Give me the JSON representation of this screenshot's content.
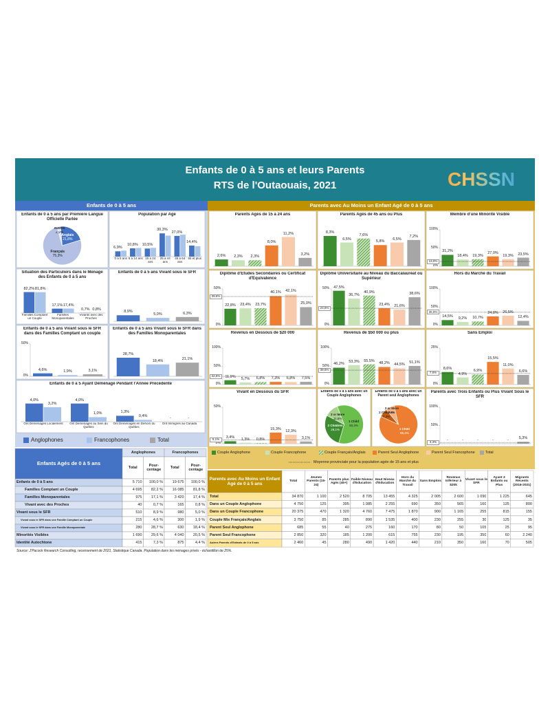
{
  "header": {
    "title": "Enfants de 0 à 5 ans et leurs Parents",
    "subtitle": "RTS de l'Outaouais, 2021",
    "logo": "CHSSN"
  },
  "children": {
    "title": "Enfants de 0 à 5 ans",
    "legend": [
      {
        "name": "Anglophones",
        "color": "#4472c4"
      },
      {
        "name": "Francophones",
        "color": "#a9c4eb"
      },
      {
        "name": "Total",
        "color": "#a6a6a6"
      }
    ],
    "charts": [
      {
        "type": "pie",
        "title": "Enfants de 0 à 5 ans par Première Langue Officielle Parlée",
        "categories": [
          "Anglais",
          "Français",
          "Autres"
        ],
        "values": [
          21.8,
          75.3,
          2.9
        ],
        "value_labels": [
          "21,8%",
          "75,3%",
          "2,9%"
        ],
        "colors": [
          "#4472c4",
          "#b4c0e4",
          "#dfe5f5"
        ]
      },
      {
        "type": "bar",
        "title": "Population par Age",
        "categories": [
          "0 à 5 ans",
          "6 à 14 ans",
          "15 à 24 ans",
          "25 à 44 ans",
          "45 à 64 ans",
          "65 et plus"
        ],
        "series": [
          {
            "values": [
              6.9,
              10.8,
              10.5,
              30.3,
              27.0,
              14.4
            ],
            "value_labels": [
              "6,9%",
              "10,8%",
              "10,5%",
              "30,3%",
              "27,0%",
              "14,4%"
            ]
          },
          {
            "values": [
              7.8,
              11.2,
              11.4,
              27.4,
              28.6,
              13.6
            ]
          }
        ],
        "ylim": [
          0,
          35
        ]
      },
      {
        "type": "bar",
        "title": "Situation des Particuliers dans le Ménage des Enfants de 0 à 5 ans",
        "categories": [
          "Familles Comptant un Couple",
          "Familles Monoparentales",
          "Vivants avec des Proches"
        ],
        "series": [
          {
            "values": [
              82.2,
              17.1,
              0.7
            ],
            "value_labels": [
              "82,2%",
              "17,1%",
              "0,7%"
            ]
          },
          {
            "values": [
              81.8,
              17.4,
              0.8
            ],
            "value_labels": [
              "81,8%",
              "17,4%",
              "0,8%"
            ]
          }
        ],
        "ylim": [
          0,
          100
        ]
      },
      {
        "type": "bar",
        "title": "Enfants de 0 à 5 ans Vivant sous le SFR",
        "values": [
          8.9,
          5.0,
          6.3
        ],
        "value_labels": [
          "8,9%",
          "5,0%",
          "6,3%"
        ],
        "ylim": [
          0,
          50
        ]
      },
      {
        "type": "bar",
        "title": "Enfants de 0 à 5 ans Vivant sous le SFR dans des Familles Comptant un couple",
        "values": [
          4.6,
          1.9,
          3.1
        ],
        "value_labels": [
          "4,6%",
          "1,9%",
          "3,1%"
        ],
        "ylim": [
          0,
          50
        ],
        "yticks": [
          {
            "value": 0,
            "label": "0%"
          },
          {
            "value": 50,
            "label": "50%"
          }
        ]
      },
      {
        "type": "bar",
        "title": "Enfants de 0 à 5 ans Vivant sous le SFR dans des Familles Monoparentales",
        "values": [
          28.7,
          18.4,
          21.1
        ],
        "value_labels": [
          "28,7%",
          "18,4%",
          "21,1%"
        ],
        "ylim": [
          0,
          50
        ]
      },
      {
        "type": "bar",
        "title": "Enfants de 0 à 5 Ayant Déménagé Pendant l'Année Précédente",
        "categories": [
          "Ont Déménagés Localement",
          "Ont Déménagés au Sein du Québec",
          "Ont Déménagés en Dehors du Québec",
          "Ont Immigrés au Canada"
        ],
        "series": [
          {
            "values": [
              4.0,
              4.0,
              1.3,
              null
            ],
            "value_labels": [
              "4,0%",
              "4,0%",
              "1,3%",
              "-"
            ]
          },
          {
            "values": [
              3.2,
              1.0,
              0.4,
              null
            ],
            "value_labels": [
              "3,2%",
              "1,0%",
              "0,4%",
              "-"
            ]
          }
        ],
        "ylim": [
          0,
          5
        ]
      }
    ]
  },
  "parents": {
    "title": "Parents avec Au Moins un Enfant Agé de 0 à 5 ans",
    "legend": [
      {
        "name": "Couple Anglophone",
        "color": "#3c8d2f"
      },
      {
        "name": "Couple Francophone",
        "color": "#c9e3b8"
      },
      {
        "name": "Couple Français/Anglais",
        "color": "#3c8d2f",
        "pattern": "hatch"
      },
      {
        "name": "Parent Seul Anglophone",
        "color": "#ed7d31"
      },
      {
        "name": "Parent Seul Francophone",
        "color": "#f8cbad"
      },
      {
        "name": "Total",
        "color": "#a6a6a6"
      }
    ],
    "average_note": "Moyenne provinciale pour la population agée de 15 ans et plus",
    "charts": [
      {
        "type": "bar",
        "title": "Parents Agés de 15 à 24 ans",
        "values": [
          2.6,
          2.3,
          2.3,
          8.0,
          11.2,
          3.2
        ],
        "value_labels": [
          "2,6%",
          "2,3%",
          "2,3%",
          "8,0%",
          "11,2%",
          "3,2%"
        ],
        "ylim": [
          0,
          14
        ]
      },
      {
        "type": "bar",
        "title": "Parents Agés de 45 ans ou Plus",
        "values": [
          8.3,
          6.5,
          7.6,
          5.8,
          6.5,
          7.2
        ],
        "value_labels": [
          "8,3%",
          "6,5%",
          "7,6%",
          "5,8%",
          "6,5%",
          "7,2%"
        ],
        "ylim": [
          0,
          10
        ]
      },
      {
        "type": "bar",
        "title": "Membre d'une Minorité Visible",
        "values": [
          31.2,
          18.4,
          19.3,
          27.0,
          19.3,
          23.5
        ],
        "value_labels": [
          "31,2%",
          "18,4%",
          "19,3%",
          "27,0%",
          "19,3%",
          "23,5%"
        ],
        "ylim": [
          0,
          100
        ],
        "yticks": [
          {
            "value": 0,
            "label": "0%"
          },
          {
            "value": 50,
            "label": "50%"
          },
          {
            "value": 100,
            "label": "100%"
          }
        ],
        "average": {
          "value": 13.0,
          "label": "13,0%"
        }
      },
      {
        "type": "bar",
        "title": "Diplôme d'Etudes Secondaires ou Certificat d'Equivalence",
        "values": [
          22.8,
          23.4,
          23.7,
          40.1,
          42.1,
          25.0
        ],
        "value_labels": [
          "22,8%",
          "23,4%",
          "23,7%",
          "40,1%",
          "42,1%",
          "25,0%"
        ],
        "ylim": [
          0,
          50
        ],
        "yticks": [
          {
            "value": 0,
            "label": "0%"
          },
          {
            "value": 50,
            "label": "50%"
          }
        ],
        "average": {
          "value": 39.6,
          "label": "39,6%"
        }
      },
      {
        "type": "bar",
        "title": "Diplôme Universitaire au Niveau du Baccalauréat ou Supérieur",
        "values": [
          47.5,
          36.7,
          40.9,
          23.4,
          21.6,
          38.6
        ],
        "value_labels": [
          "47,5%",
          "36,7%",
          "40,9%",
          "23,4%",
          "21,6%",
          "38,6%"
        ],
        "ylim": [
          0,
          50
        ],
        "yticks": [
          {
            "value": 0,
            "label": "0%"
          },
          {
            "value": 50,
            "label": "50%"
          }
        ],
        "average": {
          "value": 23.5,
          "label": "23,5%"
        }
      },
      {
        "type": "bar",
        "title": "Hors du Marché du Travail",
        "values": [
          14.5,
          9.2,
          10.7,
          24.8,
          26.5,
          12.4
        ],
        "value_labels": [
          "14,5%",
          "9,2%",
          "10,7%",
          "24,8%",
          "26,5%",
          "12,4%"
        ],
        "ylim": [
          0,
          100
        ],
        "yticks": [
          {
            "value": 0,
            "label": "0%"
          },
          {
            "value": 50,
            "label": "50%"
          },
          {
            "value": 100,
            "label": "100%"
          }
        ],
        "average": {
          "value": 35.9,
          "label": "35,9%"
        }
      },
      {
        "type": "bar",
        "title": "Revenus en Dessous de $20 000",
        "values": [
          11.9,
          5.7,
          6.8,
          7.3,
          6.8,
          7.5
        ],
        "value_labels": [
          "11,9%",
          "5,7%",
          "6,8%",
          "7,3%",
          "6,8%",
          "7,5%"
        ],
        "ylim": [
          0,
          100
        ],
        "yticks": [
          {
            "value": 0,
            "label": "0%"
          },
          {
            "value": 50,
            "label": "50%"
          },
          {
            "value": 100,
            "label": "100%"
          }
        ],
        "average": {
          "value": 22.6,
          "label": "22,6%"
        }
      },
      {
        "type": "bar",
        "title": "Revenus de $50 000 ou plus",
        "values": [
          46.2,
          53.3,
          55.5,
          48.2,
          44.5,
          51.1
        ],
        "value_labels": [
          "46,2%",
          "53,3%",
          "55,5%",
          "48,2%",
          "44,5%",
          "51,1%"
        ],
        "ylim": [
          0,
          100
        ],
        "yticks": [
          {
            "value": 0,
            "label": "0%"
          },
          {
            "value": 50,
            "label": "50%"
          },
          {
            "value": 100,
            "label": "100%"
          }
        ],
        "average": {
          "value": 39.5,
          "label": "39,5%"
        }
      },
      {
        "type": "bar",
        "title": "Sans Emploi",
        "values": [
          8.6,
          4.9,
          6.9,
          15.5,
          11.0,
          6.6
        ],
        "value_labels": [
          "8,6%",
          "4,9%",
          "6,9%",
          "15,5%",
          "11,0%",
          "6,6%"
        ],
        "ylim": [
          0,
          25
        ],
        "yticks": [
          {
            "value": 0,
            "label": "0%"
          },
          {
            "value": 25,
            "label": "25%"
          }
        ],
        "average": {
          "value": 7.6,
          "label": "7,6%"
        }
      },
      {
        "type": "bar",
        "title": "Vivant en Dessous du SFR",
        "values": [
          3.4,
          1.3,
          0.8,
          15.3,
          12.3,
          3.1
        ],
        "value_labels": [
          "3,4%",
          "1,3%",
          "0,8%",
          "15,3%",
          "12,3%",
          "3,1%"
        ],
        "ylim": [
          0,
          50
        ],
        "yticks": [
          {
            "value": 0,
            "label": "0%"
          },
          {
            "value": 50,
            "label": "50%"
          }
        ],
        "average": {
          "value": 5.1,
          "label": "5,1%"
        }
      },
      {
        "type": "pie",
        "title": "Enfants de 0 à 5 ans avec un Couple Anglophones",
        "categories": [
          "1 Child",
          "2 Children",
          "3 or More"
        ],
        "values": [
          60.3,
          28.1,
          11.6
        ],
        "value_labels": [
          "60,3%",
          "28,1%",
          "11,6%"
        ],
        "colors": [
          "#6abf4b",
          "#3d8b2f",
          "#a9d18e"
        ]
      },
      {
        "type": "pie",
        "title": "Enfants de 0 à 5 ans avec un Parent seul Anglophones",
        "categories": [
          "1 Child",
          "2 Children",
          "3 or More"
        ],
        "values": [
          85.4,
          7.3,
          7.3
        ],
        "value_labels": [
          "85,4%",
          "7,3%",
          "7,3%"
        ],
        "colors": [
          "#ed7d31",
          "#c55a11",
          "#f4b183"
        ]
      },
      {
        "type": "bar",
        "title": "Parents avec Trois Enfants ou Plus Vivant Sous le SFR",
        "values": [
          null,
          null,
          null,
          null,
          null,
          5.3
        ],
        "value_labels": [
          "-",
          "-",
          "-",
          "-",
          "-",
          "5,3%"
        ],
        "ylim": [
          0,
          100
        ],
        "yticks": [
          {
            "value": 0,
            "label": "0%"
          },
          {
            "value": 50,
            "label": "50%"
          },
          {
            "value": 100,
            "label": "100%"
          }
        ],
        "average": {
          "value": 3.3,
          "label": "3,3%"
        }
      }
    ]
  },
  "children_table": {
    "header_label": "Enfants Agés de 0 à 5 ans",
    "column_groups": [
      "Anglophones",
      "Francophones"
    ],
    "columns": [
      "Total",
      "Pour-centage",
      "Total",
      "Pour-centage"
    ],
    "rows": [
      {
        "label": "Enfants de 0 à 5 ans",
        "cells": [
          "5 710",
          "100,0 %",
          "19 675",
          "100,0 %"
        ]
      },
      {
        "label": "Familles Comptant un Couple",
        "cells": [
          "4 695",
          "82,2 %",
          "16 085",
          "81,8 %"
        ]
      },
      {
        "label": "Familles Monoparentales",
        "cells": [
          "975",
          "17,1 %",
          "3 420",
          "17,4 %"
        ]
      },
      {
        "label": "Vivant avec des Proches",
        "cells": [
          "40",
          "0,7 %",
          "165",
          "0,8 %"
        ]
      },
      {
        "label": "Vivant sous le SFR",
        "cells": [
          "510",
          "8,9 %",
          "980",
          "5,0 %"
        ]
      },
      {
        "label": "Vivant sous le SFR dans une Famille Comptant un Couple",
        "cells": [
          "215",
          "4,6 %",
          "300",
          "1,9 %"
        ]
      },
      {
        "label": "Vivant sous le SFR dans une Famille Monoparentale",
        "cells": [
          "280",
          "28,7 %",
          "630",
          "18,4 %"
        ]
      },
      {
        "label": "Minorités Visibles",
        "cells": [
          "1 690",
          "29,6 %",
          "4 040",
          "20,5 %"
        ]
      },
      {
        "label": "Identité Autochtone",
        "cells": [
          "415",
          "7,3 %",
          "875",
          "4,4 %"
        ]
      }
    ]
  },
  "parents_table": {
    "header_label": "Parents avec Au Moins un Enfant Agé de 0 à 5 ans",
    "columns": [
      "Total",
      "Jeunes Parents (15-24)",
      "Parents plus Agés (45+)",
      "Faible Niveau d'Education",
      "Haut Niveau d'Education",
      "Hors du Marché du Travail",
      "Sans Emplois",
      "Revenus Inférieur à $20k",
      "Vivant sous le SFR",
      "Ayant 3 Enfants ou Plus",
      "Migrants Récents (2016-2021)"
    ],
    "rows": [
      {
        "label": "Total",
        "cells": [
          "34 870",
          "1 100",
          "2 520",
          "8 705",
          "13 455",
          "4 325",
          "2 005",
          "2 600",
          "1 090",
          "1 225",
          "645"
        ]
      },
      {
        "label": "Dans un Couple Anglophone",
        "cells": [
          "4 750",
          "125",
          "395",
          "1 085",
          "2 255",
          "690",
          "350",
          "565",
          "160",
          "125",
          "800"
        ]
      },
      {
        "label": "Dans un Couple Francophone",
        "cells": [
          "20 375",
          "470",
          "1 320",
          "4 760",
          "7 475",
          "1 870",
          "900",
          "1 165",
          "255",
          "815",
          "155"
        ]
      },
      {
        "label": "Couple Mix Français/Anglais",
        "cells": [
          "3 750",
          "85",
          "285",
          "890",
          "1 535",
          "400",
          "230",
          "255",
          "30",
          "125",
          "35"
        ]
      },
      {
        "label": "Parent Seul Anglophone",
        "cells": [
          "685",
          "55",
          "40",
          "275",
          "160",
          "170",
          "80",
          "50",
          "105",
          "25",
          "95"
        ]
      },
      {
        "label": "Parent Seul Francophone",
        "cells": [
          "2 850",
          "320",
          "185",
          "1 200",
          "615",
          "755",
          "230",
          "195",
          "350",
          "60",
          "2 240"
        ]
      },
      {
        "label": "Autres Parents d'Enfants de 0 à 5 ans",
        "cells": [
          "2 460",
          "45",
          "280",
          "490",
          "1 420",
          "440",
          "210",
          "350",
          "160",
          "70",
          "505"
        ]
      }
    ]
  },
  "source": "Source: J'Pacock Research Consulting, recensement de 2021, Statistique Canada. Population dans les ménages privés - échantillon de 25%."
}
